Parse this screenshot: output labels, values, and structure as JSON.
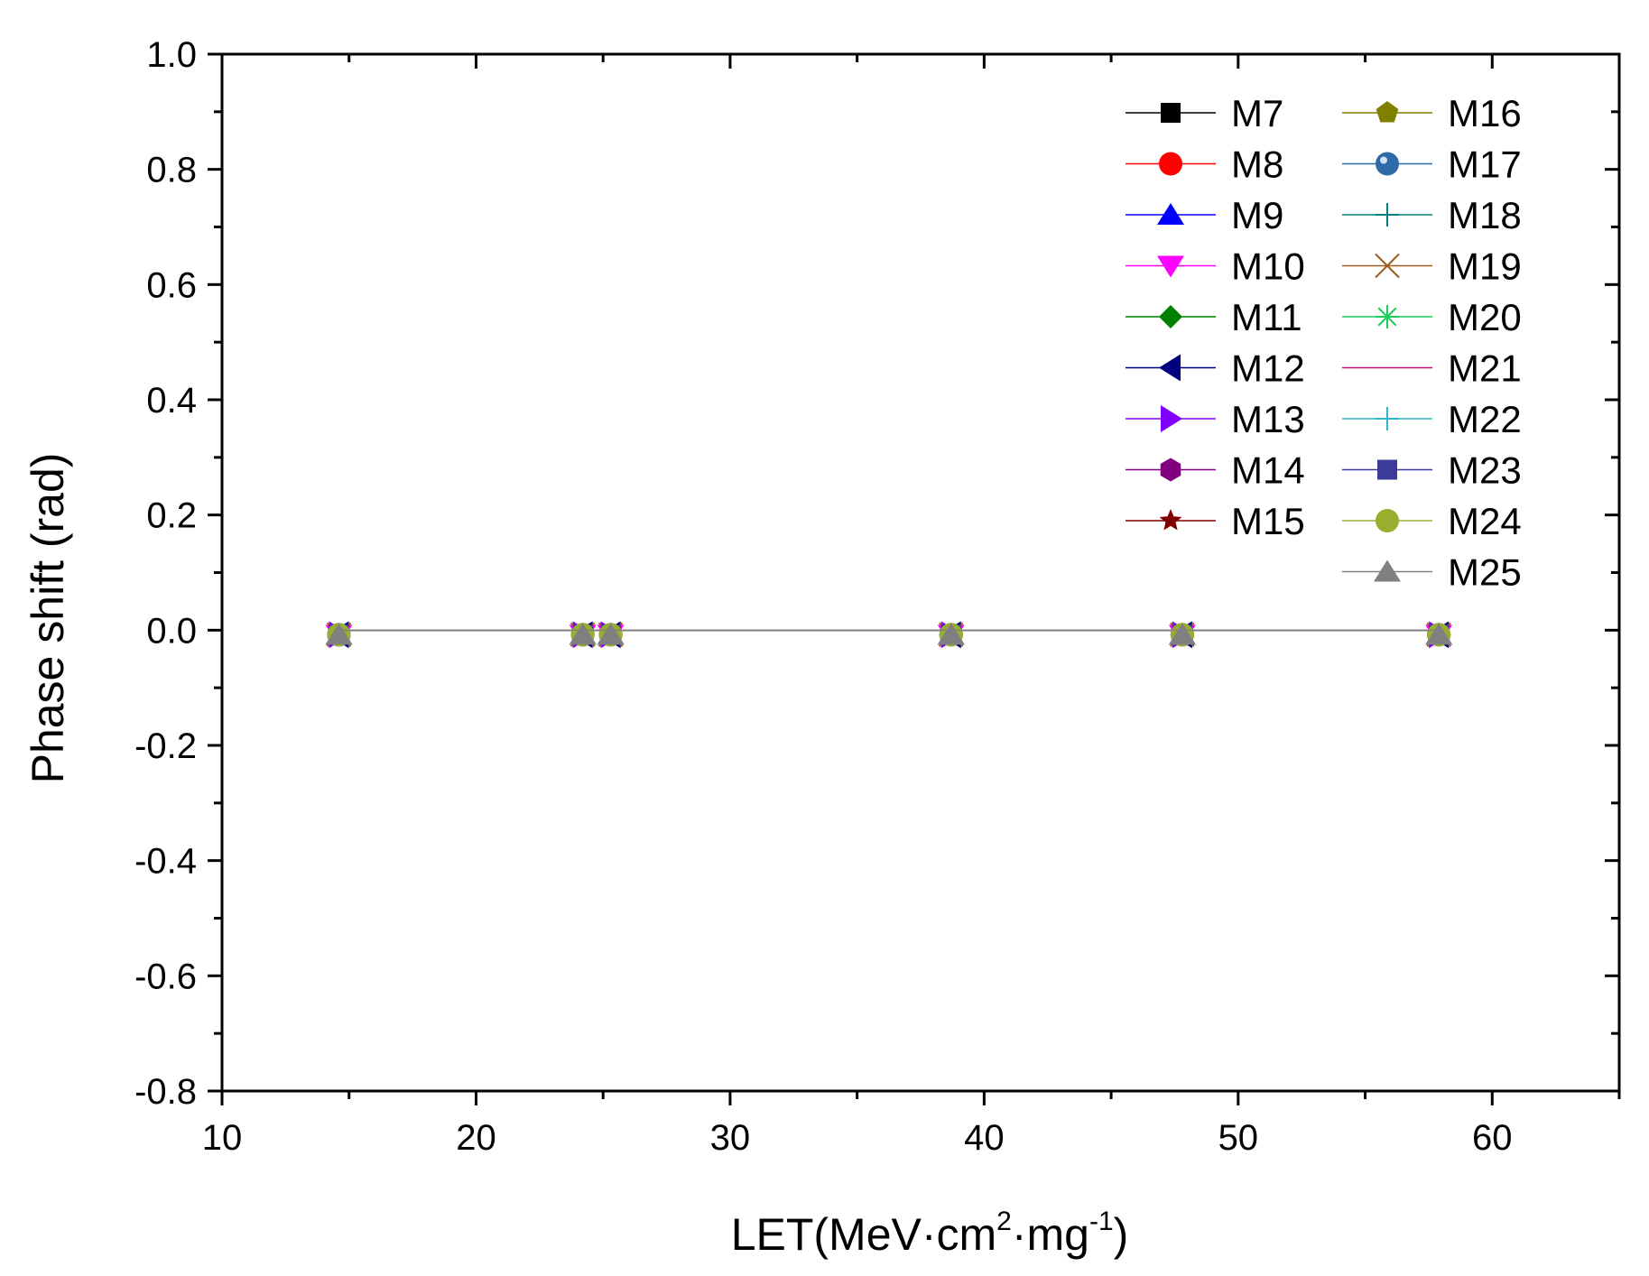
{
  "chart_data": {
    "type": "line",
    "title": "",
    "xlabel": {
      "prefix": "LET(MeV·cm",
      "sup1": "2",
      "middle": "·mg",
      "sup2": "-1",
      "suffix": ")"
    },
    "ylabel": "Phase shift (rad)",
    "xlim": [
      10,
      65
    ],
    "ylim": [
      -0.8,
      1.0
    ],
    "x_ticks": [
      "10",
      "20",
      "30",
      "40",
      "50",
      "60"
    ],
    "y_ticks": [
      "1.0",
      "0.8",
      "0.6",
      "0.4",
      "0.2",
      "0.0",
      "-0.2",
      "-0.4",
      "-0.6",
      "-0.8"
    ],
    "x": [
      14.6,
      24.2,
      25.3,
      38.7,
      47.8,
      57.9
    ],
    "legend_position": "top-right",
    "series": [
      {
        "name": "M7",
        "color": "#000000",
        "marker": "square",
        "values": [
          0,
          0,
          0,
          0,
          0,
          0
        ]
      },
      {
        "name": "M8",
        "color": "#ff0000",
        "marker": "circle",
        "values": [
          0,
          0,
          0,
          0,
          0,
          0
        ]
      },
      {
        "name": "M9",
        "color": "#0000ff",
        "marker": "triangle-up",
        "values": [
          0,
          0,
          0,
          0,
          0,
          0
        ]
      },
      {
        "name": "M10",
        "color": "#ff00ff",
        "marker": "triangle-down",
        "values": [
          0,
          0,
          0,
          0,
          0,
          0
        ]
      },
      {
        "name": "M11",
        "color": "#008000",
        "marker": "diamond",
        "values": [
          0,
          0,
          0,
          0,
          0,
          0
        ]
      },
      {
        "name": "M12",
        "color": "#000080",
        "marker": "triangle-left",
        "values": [
          0,
          0,
          0,
          0,
          0,
          0
        ]
      },
      {
        "name": "M13",
        "color": "#8000ff",
        "marker": "triangle-right",
        "values": [
          0,
          0,
          0,
          0,
          0,
          0
        ]
      },
      {
        "name": "M14",
        "color": "#800080",
        "marker": "hexagon",
        "values": [
          0,
          0,
          0,
          0,
          0,
          0
        ]
      },
      {
        "name": "M15",
        "color": "#800000",
        "marker": "star",
        "values": [
          0,
          0,
          0,
          0,
          0,
          0
        ]
      },
      {
        "name": "M16",
        "color": "#808000",
        "marker": "pentagon",
        "values": [
          0,
          0,
          0,
          0,
          0,
          0
        ]
      },
      {
        "name": "M17",
        "color": "#2e6aa8",
        "marker": "sphere",
        "values": [
          0,
          0,
          0,
          0,
          0,
          0
        ]
      },
      {
        "name": "M18",
        "color": "#008080",
        "marker": "plus",
        "values": [
          0,
          0,
          0,
          0,
          0,
          0
        ]
      },
      {
        "name": "M19",
        "color": "#9c5a1e",
        "marker": "cross",
        "values": [
          0,
          0,
          0,
          0,
          0,
          0
        ]
      },
      {
        "name": "M20",
        "color": "#1ecc5a",
        "marker": "asterisk",
        "values": [
          0,
          0,
          0,
          0,
          0,
          0
        ]
      },
      {
        "name": "M21",
        "color": "#c0107a",
        "marker": "none",
        "values": [
          0,
          0,
          0,
          0,
          0,
          0
        ]
      },
      {
        "name": "M22",
        "color": "#2ab7c7",
        "marker": "plus",
        "values": [
          0,
          0,
          0,
          0,
          0,
          0
        ]
      },
      {
        "name": "M23",
        "color": "#3b3b9a",
        "marker": "square",
        "values": [
          0,
          0,
          0,
          0,
          0,
          0
        ]
      },
      {
        "name": "M24",
        "color": "#9aad2e",
        "marker": "circle",
        "values": [
          0,
          0,
          0,
          0,
          0,
          0
        ]
      },
      {
        "name": "M25",
        "color": "#808080",
        "marker": "triangle-up",
        "values": [
          0,
          0,
          0,
          0,
          0,
          0
        ]
      }
    ]
  }
}
